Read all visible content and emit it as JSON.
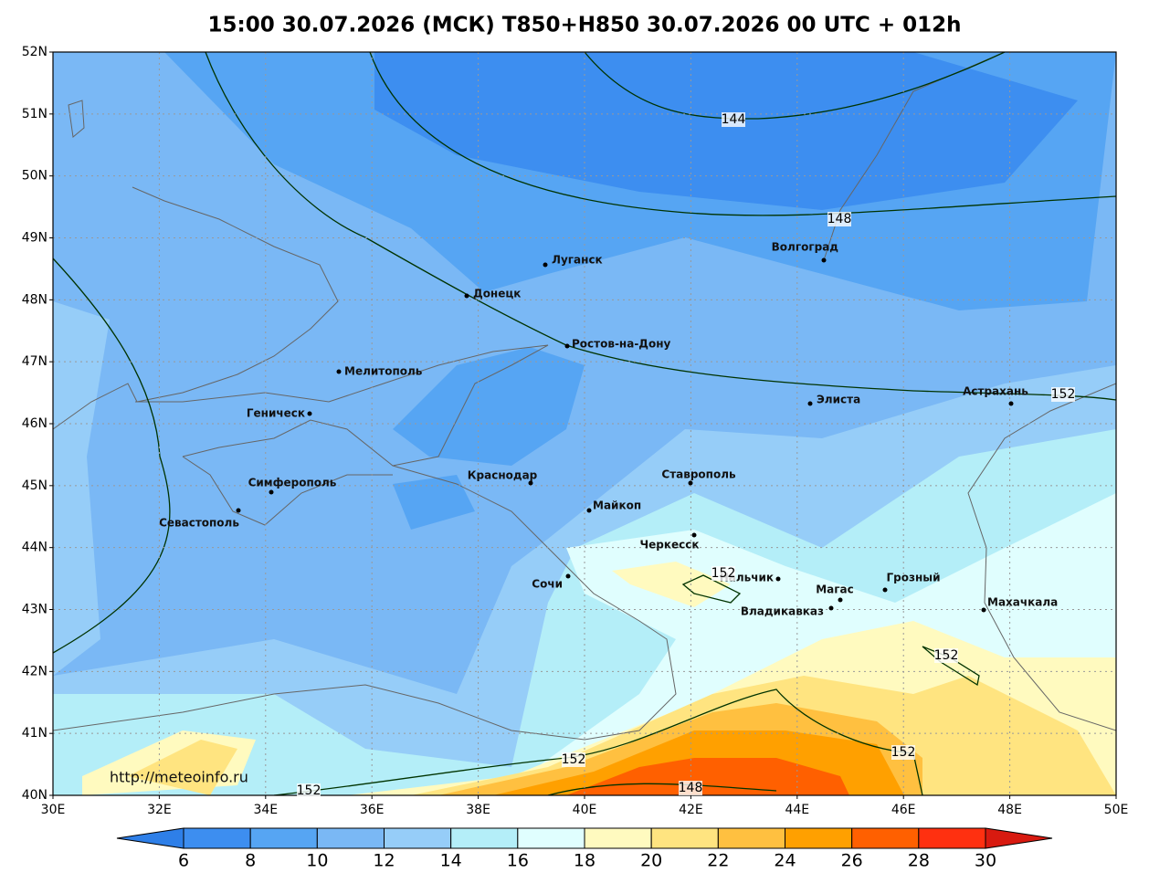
{
  "title": "15:00 30.07.2026 (МСК) T850+H850 30.07.2026 00 UTC + 012h",
  "url": "http://meteoinfo.ru",
  "lat_ticks": [
    {
      "value": 52,
      "label": "52N"
    },
    {
      "value": 51,
      "label": "51N"
    },
    {
      "value": 50,
      "label": "50N"
    },
    {
      "value": 49,
      "label": "49N"
    },
    {
      "value": 48,
      "label": "48N"
    },
    {
      "value": 47,
      "label": "47N"
    },
    {
      "value": 46,
      "label": "46N"
    },
    {
      "value": 45,
      "label": "45N"
    },
    {
      "value": 44,
      "label": "44N"
    },
    {
      "value": 43,
      "label": "43N"
    },
    {
      "value": 42,
      "label": "42N"
    },
    {
      "value": 41,
      "label": "41N"
    },
    {
      "value": 40,
      "label": "40N"
    }
  ],
  "lon_ticks": [
    {
      "value": 30,
      "label": "30E"
    },
    {
      "value": 32,
      "label": "32E"
    },
    {
      "value": 34,
      "label": "34E"
    },
    {
      "value": 36,
      "label": "36E"
    },
    {
      "value": 38,
      "label": "38E"
    },
    {
      "value": 40,
      "label": "40E"
    },
    {
      "value": 42,
      "label": "42E"
    },
    {
      "value": 44,
      "label": "44E"
    },
    {
      "value": 46,
      "label": "46E"
    },
    {
      "value": 48,
      "label": "48E"
    },
    {
      "value": 50,
      "label": "50E"
    }
  ],
  "cities": [
    "Луганск",
    "Донецк",
    "Волгоград",
    "Ростов-на-Дону",
    "Мелитополь",
    "Элиста",
    "Астрахань",
    "Геническ",
    "Краснодар",
    "Ставрополь",
    "Симферополь",
    "Севастополь",
    "Майкоп",
    "Черкесск",
    "Нальчик",
    "Сочи",
    "Магас",
    "Грозный",
    "Махачкала",
    "Владикавказ"
  ],
  "contour_labels": [
    "144",
    "148",
    "152",
    "152",
    "152",
    "152",
    "152",
    "148",
    "152"
  ],
  "colorbar": {
    "ticks": [
      6,
      8,
      10,
      12,
      14,
      16,
      18,
      20,
      22,
      24,
      26,
      28,
      30
    ],
    "colors": [
      "#2e7fe8",
      "#3d8ef0",
      "#56a5f3",
      "#7ab8f5",
      "#96cdf8",
      "#b4eef8",
      "#e0fefe",
      "#fffabf",
      "#ffe480",
      "#ffc040",
      "#ffa000",
      "#ff6000",
      "#ff3010",
      "#d81a10"
    ]
  }
}
